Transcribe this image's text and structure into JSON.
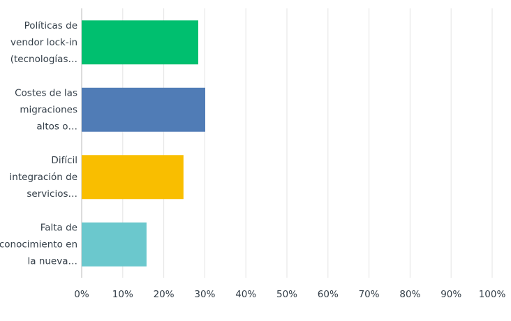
{
  "chart_data": {
    "type": "hbar",
    "categories": [
      [
        "Políticas de",
        "vendor lock-in",
        "(tecnologías…"
      ],
      [
        "Costes de las",
        "migraciones",
        "altos o…"
      ],
      [
        "Difícil",
        "integración de",
        "servicios…"
      ],
      [
        "Falta de",
        "conocimiento en",
        "la nueva…"
      ]
    ],
    "values": [
      28.4,
      30.1,
      24.8,
      15.8
    ],
    "colors": [
      "#00bf6f",
      "#507cb6",
      "#f9be00",
      "#6bc8cd"
    ],
    "xlim": [
      0,
      100
    ],
    "xticks": [
      {
        "value": 0,
        "label": "0%"
      },
      {
        "value": 10,
        "label": "10%"
      },
      {
        "value": 20,
        "label": "20%"
      },
      {
        "value": 30,
        "label": "30%"
      },
      {
        "value": 40,
        "label": "40%"
      },
      {
        "value": 50,
        "label": "50%"
      },
      {
        "value": 60,
        "label": "60%"
      },
      {
        "value": 70,
        "label": "70%"
      },
      {
        "value": 80,
        "label": "80%"
      },
      {
        "value": 90,
        "label": "90%"
      },
      {
        "value": 100,
        "label": "100%"
      }
    ],
    "grid": true
  }
}
